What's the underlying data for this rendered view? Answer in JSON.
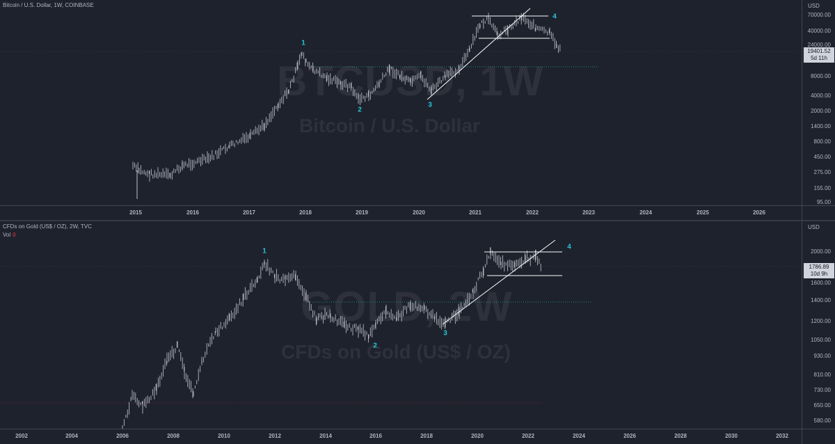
{
  "btc": {
    "legend": "Bitcoin / U.S. Dollar, 1W, COINBASE",
    "watermark_symbol": "BTCUSD, 1W",
    "watermark_desc": "Bitcoin / U.S. Dollar",
    "currency": "USD",
    "price_labels": [
      "70000.00",
      "40000.00",
      "24000.00",
      "8000.00",
      "4000.00",
      "2000.00",
      "1400.00",
      "800.00",
      "450.00",
      "275.00",
      "155.00",
      "95.00"
    ],
    "last_price": "19401.52",
    "countdown": "5d 11h",
    "time_labels": [
      "2015",
      "2016",
      "2017",
      "2018",
      "2019",
      "2020",
      "2021",
      "2022",
      "2023",
      "2024",
      "2025",
      "2026"
    ],
    "waves": [
      "1",
      "2",
      "3",
      "4"
    ]
  },
  "gold": {
    "legend": "CFDs on Gold (US$ / OZ), 2W, TVC",
    "volume_label": "Vol",
    "volume_value": "0",
    "watermark_symbol": "GOLD, 2W",
    "watermark_desc": "CFDs on Gold (US$ / OZ)",
    "currency": "USD",
    "price_labels": [
      "2000.00",
      "1600.00",
      "1400.00",
      "1200.00",
      "1050.00",
      "930.00",
      "810.00",
      "730.00",
      "650.00",
      "580.00"
    ],
    "last_price": "1786.89",
    "countdown": "10d 9h",
    "time_labels": [
      "2002",
      "2004",
      "2006",
      "2008",
      "2010",
      "2012",
      "2014",
      "2016",
      "2018",
      "2020",
      "2022",
      "2024",
      "2026",
      "2028",
      "2030",
      "2032"
    ],
    "waves": [
      "1",
      "2",
      "3",
      "4"
    ]
  },
  "colors": {
    "background": "#1e222d",
    "candle": "#d1d4dc",
    "wave_label": "#26c6da",
    "level_line": "#26a69a",
    "trend_line": "#ffffff",
    "volume_value": "#f23645"
  }
}
